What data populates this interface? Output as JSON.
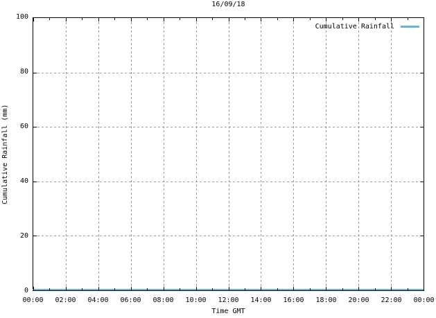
{
  "title": "16/09/18",
  "x_axis": {
    "label": "Time GMT",
    "tick_labels": [
      "00:00",
      "02:00",
      "04:00",
      "06:00",
      "08:00",
      "10:00",
      "12:00",
      "14:00",
      "16:00",
      "18:00",
      "20:00",
      "22:00",
      "00:00"
    ]
  },
  "y_axis": {
    "label": "Cumulative Rainfall (mm)",
    "tick_labels": [
      "0",
      "20",
      "40",
      "60",
      "80",
      "100"
    ],
    "tick_values": [
      0,
      20,
      40,
      60,
      80,
      100
    ]
  },
  "legend": {
    "position": "top-right",
    "entries": [
      {
        "label": "Cumulative Rainfall",
        "color": "#5fb6e0"
      }
    ]
  },
  "colors": {
    "axis": "#000000",
    "grid": "#9a9a9a",
    "series": "#5fb6e0",
    "background": "#ffffff"
  },
  "chart_data": {
    "type": "line",
    "title": "16/09/18",
    "xlabel": "Time GMT",
    "ylabel": "Cumulative Rainfall (mm)",
    "x": [
      "00:00",
      "02:00",
      "04:00",
      "06:00",
      "08:00",
      "10:00",
      "12:00",
      "14:00",
      "16:00",
      "18:00",
      "20:00",
      "22:00",
      "00:00"
    ],
    "series": [
      {
        "name": "Cumulative Rainfall",
        "color": "#5fb6e0",
        "values": [
          0,
          0,
          0,
          0,
          0,
          0,
          0,
          0,
          0,
          0,
          0,
          0,
          0
        ]
      }
    ],
    "ylim": [
      0,
      100
    ],
    "grid": true,
    "grid_style": "dashed",
    "legend_position": "top-right",
    "x_minor_per_major": 1
  }
}
